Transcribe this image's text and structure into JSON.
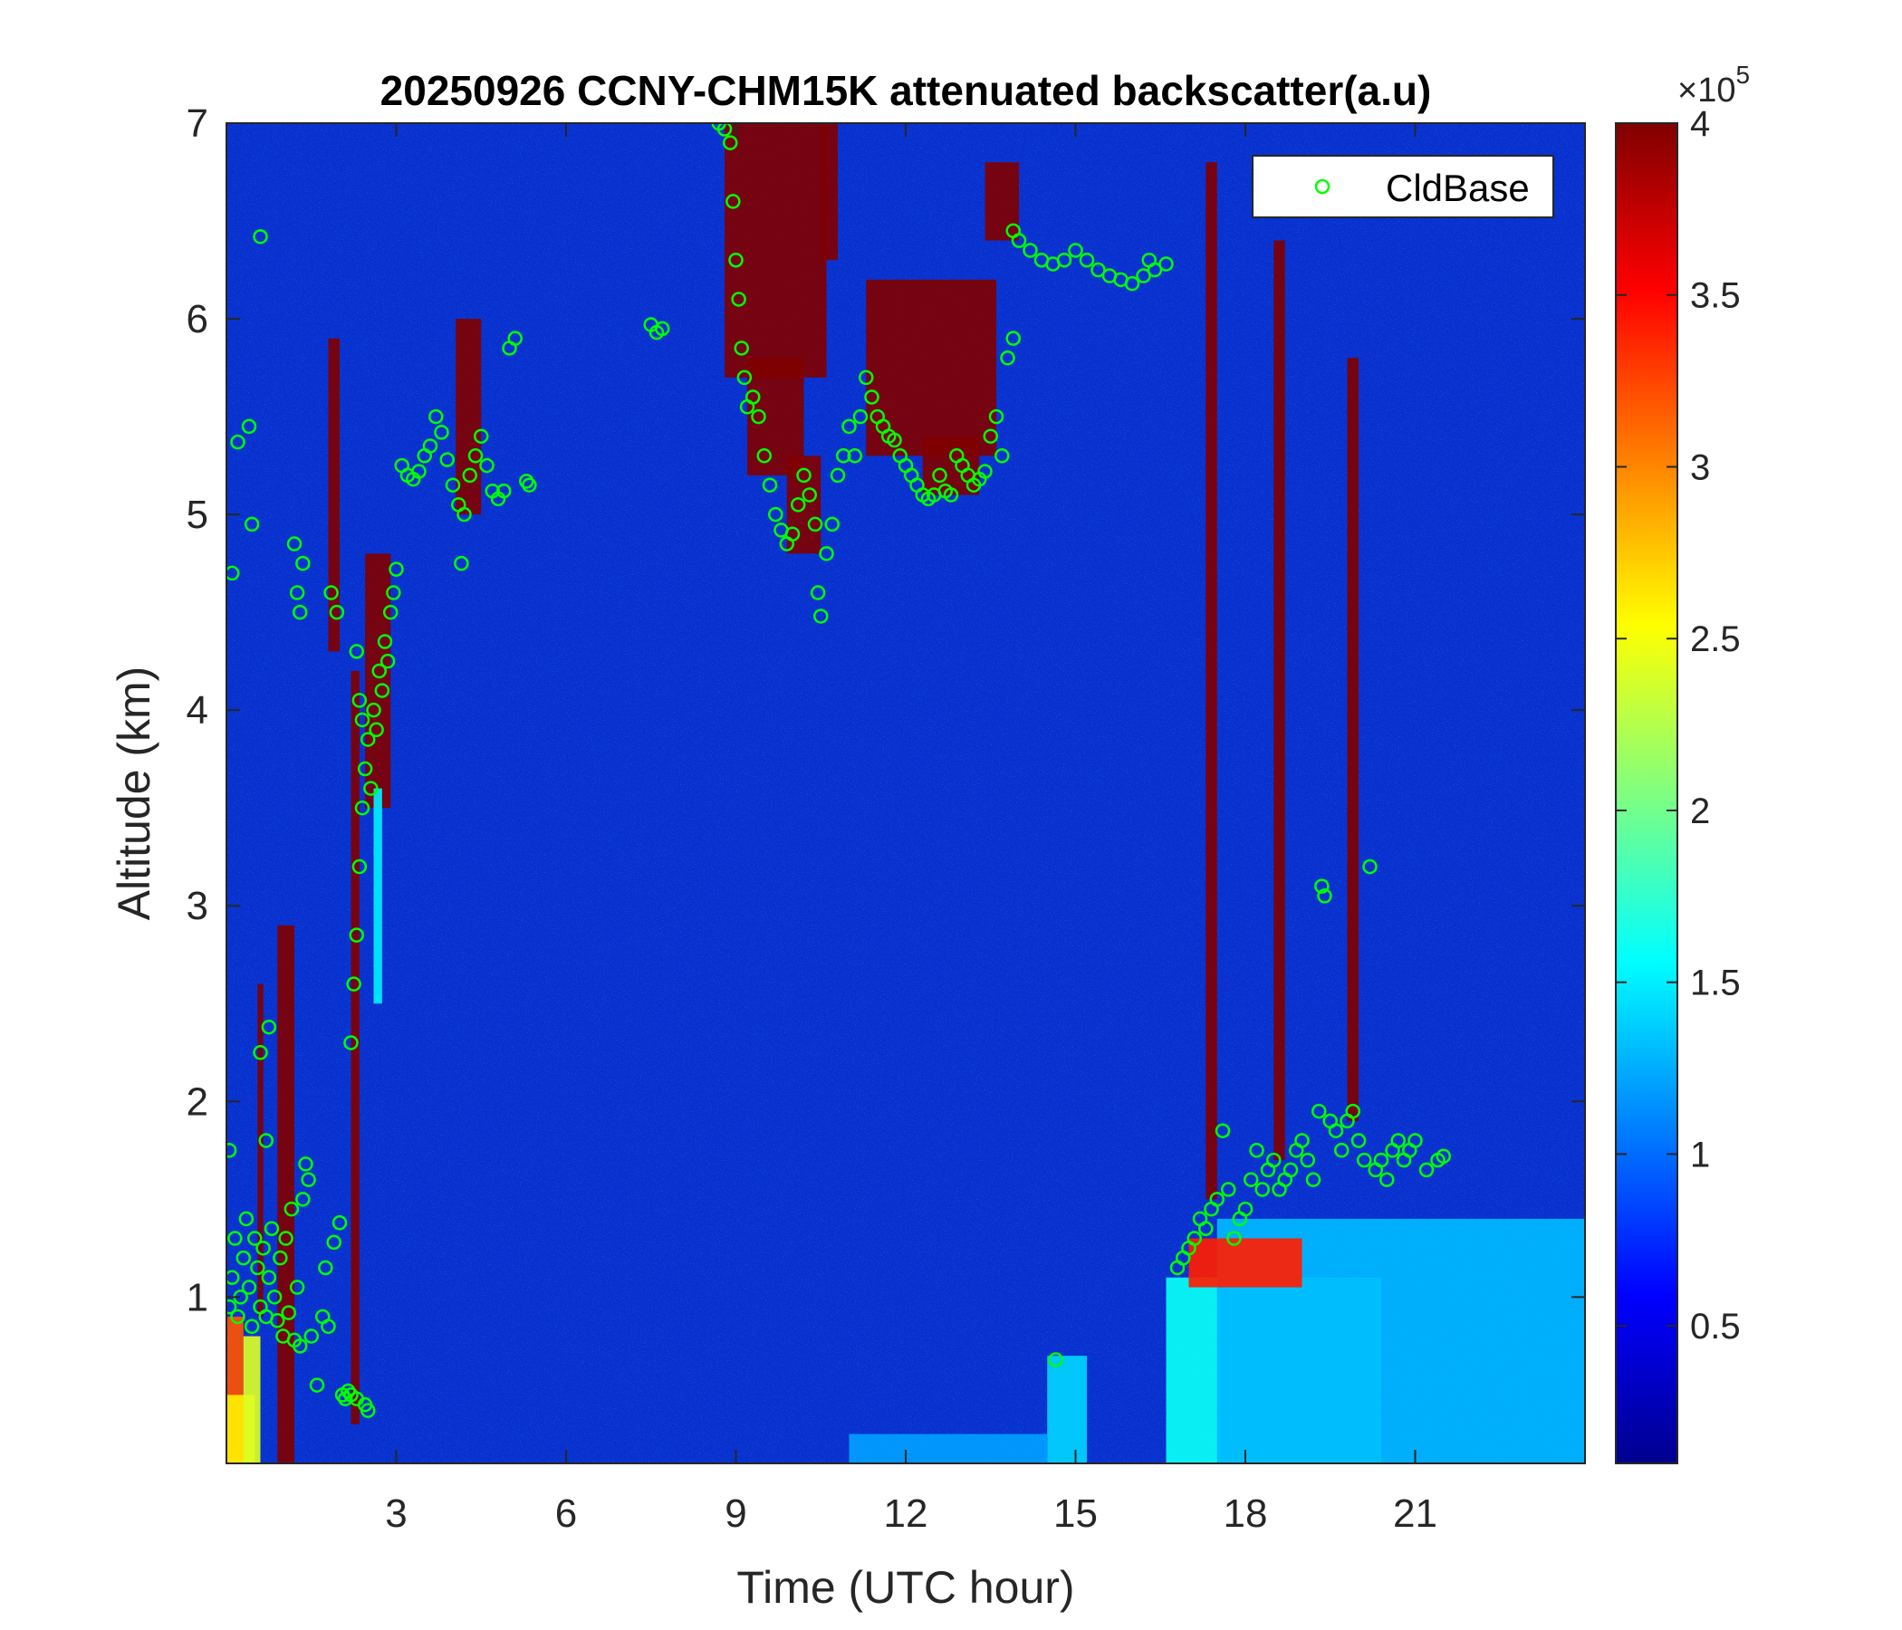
{
  "chart_data": {
    "type": "heatmap",
    "title": "20250926 CCNY-CHM15K attenuated backscatter(a.u)",
    "xlabel": "Time (UTC hour)",
    "ylabel": "Altitude (km)",
    "xlim": [
      0,
      24
    ],
    "ylim": [
      0.15,
      7
    ],
    "xticks": [
      3,
      6,
      9,
      12,
      15,
      18,
      21
    ],
    "yticks": [
      1,
      2,
      3,
      4,
      5,
      6,
      7
    ],
    "grid": false,
    "colormap": "jet",
    "colorbar": {
      "range": [
        0.1,
        4
      ],
      "ticks": [
        0.5,
        1,
        1.5,
        2,
        2.5,
        3,
        3.5,
        4
      ],
      "tick_labels": [
        "0.5",
        "1",
        "1.5",
        "2",
        "2.5",
        "3",
        "3.5",
        "4"
      ],
      "multiplier_base": "×10",
      "multiplier_exponent": "5"
    },
    "legend": {
      "position": "top-right",
      "entries": [
        "CldBase"
      ]
    },
    "series": [
      {
        "name": "CldBase",
        "marker": "circle",
        "color": "#00ff00",
        "points": [
          [
            0.05,
            0.95
          ],
          [
            0.1,
            1.1
          ],
          [
            0.15,
            1.3
          ],
          [
            0.2,
            0.9
          ],
          [
            0.25,
            1.0
          ],
          [
            0.3,
            1.2
          ],
          [
            0.35,
            1.4
          ],
          [
            0.4,
            1.05
          ],
          [
            0.45,
            0.85
          ],
          [
            0.5,
            1.3
          ],
          [
            0.55,
            1.15
          ],
          [
            0.6,
            0.95
          ],
          [
            0.65,
            1.25
          ],
          [
            0.7,
            0.9
          ],
          [
            0.75,
            1.1
          ],
          [
            0.8,
            1.35
          ],
          [
            0.85,
            1.0
          ],
          [
            0.9,
            0.88
          ],
          [
            0.95,
            1.2
          ],
          [
            1.0,
            0.8
          ],
          [
            1.05,
            1.3
          ],
          [
            1.1,
            0.92
          ],
          [
            1.15,
            1.45
          ],
          [
            1.2,
            0.78
          ],
          [
            1.25,
            1.05
          ],
          [
            1.3,
            0.75
          ],
          [
            1.35,
            1.5
          ],
          [
            0.05,
            1.75
          ],
          [
            0.1,
            4.7
          ],
          [
            0.2,
            5.37
          ],
          [
            0.4,
            5.45
          ],
          [
            0.45,
            4.95
          ],
          [
            0.6,
            6.42
          ],
          [
            0.6,
            2.25
          ],
          [
            0.7,
            1.8
          ],
          [
            0.75,
            2.38
          ],
          [
            1.2,
            4.85
          ],
          [
            1.25,
            4.6
          ],
          [
            1.3,
            4.5
          ],
          [
            1.35,
            4.75
          ],
          [
            1.4,
            1.68
          ],
          [
            1.45,
            1.6
          ],
          [
            1.5,
            0.8
          ],
          [
            1.6,
            0.55
          ],
          [
            1.7,
            0.9
          ],
          [
            1.75,
            1.15
          ],
          [
            1.8,
            0.85
          ],
          [
            1.85,
            4.6
          ],
          [
            1.9,
            1.28
          ],
          [
            1.95,
            4.5
          ],
          [
            2.0,
            1.38
          ],
          [
            2.05,
            0.5
          ],
          [
            2.1,
            0.48
          ],
          [
            2.15,
            0.52
          ],
          [
            2.2,
            2.3
          ],
          [
            2.25,
            2.6
          ],
          [
            2.3,
            2.85
          ],
          [
            2.35,
            3.2
          ],
          [
            2.4,
            3.5
          ],
          [
            2.45,
            3.7
          ],
          [
            2.5,
            3.85
          ],
          [
            2.55,
            3.6
          ],
          [
            2.6,
            4.0
          ],
          [
            2.65,
            3.9
          ],
          [
            2.7,
            4.2
          ],
          [
            2.75,
            4.1
          ],
          [
            2.8,
            4.35
          ],
          [
            2.85,
            4.25
          ],
          [
            2.9,
            4.5
          ],
          [
            2.95,
            4.6
          ],
          [
            2.3,
            4.3
          ],
          [
            2.35,
            4.05
          ],
          [
            2.4,
            3.95
          ],
          [
            2.45,
            0.45
          ],
          [
            2.5,
            0.42
          ],
          [
            2.2,
            0.5
          ],
          [
            2.3,
            0.48
          ],
          [
            3.0,
            4.72
          ],
          [
            3.1,
            5.25
          ],
          [
            3.2,
            5.2
          ],
          [
            3.3,
            5.18
          ],
          [
            3.4,
            5.22
          ],
          [
            3.5,
            5.3
          ],
          [
            3.6,
            5.35
          ],
          [
            3.7,
            5.5
          ],
          [
            3.8,
            5.42
          ],
          [
            3.9,
            5.28
          ],
          [
            4.0,
            5.15
          ],
          [
            4.1,
            5.05
          ],
          [
            4.15,
            4.75
          ],
          [
            4.2,
            5.0
          ],
          [
            4.3,
            5.2
          ],
          [
            4.4,
            5.3
          ],
          [
            4.5,
            5.4
          ],
          [
            4.6,
            5.25
          ],
          [
            4.7,
            5.12
          ],
          [
            4.8,
            5.08
          ],
          [
            4.9,
            5.12
          ],
          [
            5.0,
            5.85
          ],
          [
            5.1,
            5.9
          ],
          [
            5.3,
            5.17
          ],
          [
            5.35,
            5.15
          ],
          [
            7.5,
            5.97
          ],
          [
            7.6,
            5.93
          ],
          [
            7.7,
            5.95
          ],
          [
            8.7,
            7.0
          ],
          [
            8.8,
            6.97
          ],
          [
            8.9,
            6.9
          ],
          [
            8.95,
            6.6
          ],
          [
            9.0,
            6.3
          ],
          [
            9.05,
            6.1
          ],
          [
            9.1,
            5.85
          ],
          [
            9.15,
            5.7
          ],
          [
            9.2,
            5.55
          ],
          [
            9.3,
            5.6
          ],
          [
            9.4,
            5.5
          ],
          [
            9.5,
            5.3
          ],
          [
            9.6,
            5.15
          ],
          [
            9.7,
            5.0
          ],
          [
            9.8,
            4.92
          ],
          [
            9.9,
            4.85
          ],
          [
            10.0,
            4.9
          ],
          [
            10.1,
            5.05
          ],
          [
            10.2,
            5.2
          ],
          [
            10.3,
            5.1
          ],
          [
            10.4,
            4.95
          ],
          [
            10.45,
            4.6
          ],
          [
            10.5,
            4.48
          ],
          [
            10.6,
            4.8
          ],
          [
            10.7,
            4.95
          ],
          [
            10.8,
            5.2
          ],
          [
            10.9,
            5.3
          ],
          [
            11.0,
            5.45
          ],
          [
            11.1,
            5.3
          ],
          [
            11.2,
            5.5
          ],
          [
            11.3,
            5.7
          ],
          [
            11.4,
            5.6
          ],
          [
            11.5,
            5.5
          ],
          [
            11.6,
            5.45
          ],
          [
            11.7,
            5.4
          ],
          [
            11.8,
            5.38
          ],
          [
            11.9,
            5.3
          ],
          [
            12.0,
            5.25
          ],
          [
            12.1,
            5.2
          ],
          [
            12.2,
            5.15
          ],
          [
            12.3,
            5.1
          ],
          [
            12.4,
            5.08
          ],
          [
            12.5,
            5.1
          ],
          [
            12.6,
            5.2
          ],
          [
            12.7,
            5.12
          ],
          [
            12.8,
            5.1
          ],
          [
            12.9,
            5.3
          ],
          [
            13.0,
            5.25
          ],
          [
            13.1,
            5.2
          ],
          [
            13.2,
            5.15
          ],
          [
            13.3,
            5.18
          ],
          [
            13.4,
            5.22
          ],
          [
            13.5,
            5.4
          ],
          [
            13.6,
            5.5
          ],
          [
            13.7,
            5.3
          ],
          [
            13.8,
            5.8
          ],
          [
            13.9,
            5.9
          ],
          [
            13.9,
            6.45
          ],
          [
            14.0,
            6.4
          ],
          [
            14.2,
            6.35
          ],
          [
            14.4,
            6.3
          ],
          [
            14.6,
            6.28
          ],
          [
            14.8,
            6.3
          ],
          [
            15.0,
            6.35
          ],
          [
            15.2,
            6.3
          ],
          [
            15.4,
            6.25
          ],
          [
            15.6,
            6.22
          ],
          [
            15.8,
            6.2
          ],
          [
            16.0,
            6.18
          ],
          [
            16.2,
            6.22
          ],
          [
            16.3,
            6.3
          ],
          [
            16.4,
            6.25
          ],
          [
            16.6,
            6.28
          ],
          [
            14.65,
            0.68
          ],
          [
            16.8,
            1.15
          ],
          [
            16.9,
            1.2
          ],
          [
            17.0,
            1.25
          ],
          [
            17.1,
            1.3
          ],
          [
            17.2,
            1.4
          ],
          [
            17.3,
            1.35
          ],
          [
            17.4,
            1.45
          ],
          [
            17.5,
            1.5
          ],
          [
            17.6,
            1.85
          ],
          [
            17.7,
            1.55
          ],
          [
            17.8,
            1.3
          ],
          [
            17.9,
            1.4
          ],
          [
            18.0,
            1.45
          ],
          [
            18.1,
            1.6
          ],
          [
            18.2,
            1.75
          ],
          [
            18.3,
            1.55
          ],
          [
            18.4,
            1.65
          ],
          [
            18.5,
            1.7
          ],
          [
            18.6,
            1.55
          ],
          [
            18.7,
            1.6
          ],
          [
            18.8,
            1.65
          ],
          [
            18.9,
            1.75
          ],
          [
            19.0,
            1.8
          ],
          [
            19.1,
            1.7
          ],
          [
            19.2,
            1.6
          ],
          [
            19.3,
            1.95
          ],
          [
            19.35,
            3.1
          ],
          [
            19.4,
            3.05
          ],
          [
            19.5,
            1.9
          ],
          [
            19.6,
            1.85
          ],
          [
            19.7,
            1.75
          ],
          [
            19.8,
            1.9
          ],
          [
            19.9,
            1.95
          ],
          [
            20.0,
            1.8
          ],
          [
            20.1,
            1.7
          ],
          [
            20.2,
            3.2
          ],
          [
            20.3,
            1.65
          ],
          [
            20.4,
            1.7
          ],
          [
            20.5,
            1.6
          ],
          [
            20.6,
            1.75
          ],
          [
            20.7,
            1.8
          ],
          [
            20.8,
            1.7
          ],
          [
            20.9,
            1.75
          ],
          [
            21.0,
            1.8
          ],
          [
            21.2,
            1.65
          ],
          [
            21.4,
            1.7
          ],
          [
            21.5,
            1.72
          ]
        ]
      }
    ],
    "regions": [
      {
        "t0": 0.0,
        "t1": 0.3,
        "z0": 0.15,
        "z1": 0.9,
        "v": 3.2
      },
      {
        "t0": 0.0,
        "t1": 0.5,
        "z0": 0.15,
        "z1": 0.5,
        "v": 2.6
      },
      {
        "t0": 0.3,
        "t1": 0.6,
        "z0": 0.15,
        "z1": 0.8,
        "v": 2.4
      },
      {
        "t0": 0.9,
        "t1": 1.2,
        "z0": 0.15,
        "z1": 2.9,
        "v": 4.0
      },
      {
        "t0": 0.55,
        "t1": 0.65,
        "z0": 0.9,
        "z1": 2.6,
        "v": 4.0
      },
      {
        "t0": 1.8,
        "t1": 2.0,
        "z0": 4.3,
        "z1": 5.9,
        "v": 4.0
      },
      {
        "t0": 2.2,
        "t1": 2.35,
        "z0": 0.35,
        "z1": 4.2,
        "v": 4.0
      },
      {
        "t0": 2.45,
        "t1": 2.9,
        "z0": 3.5,
        "z1": 4.8,
        "v": 4.0
      },
      {
        "t0": 2.6,
        "t1": 2.75,
        "z0": 2.5,
        "z1": 3.6,
        "v": 1.5
      },
      {
        "t0": 4.05,
        "t1": 4.5,
        "z0": 5.0,
        "z1": 6.0,
        "v": 4.0
      },
      {
        "t0": 8.8,
        "t1": 10.6,
        "z0": 5.7,
        "z1": 7.0,
        "v": 4.0
      },
      {
        "t0": 9.2,
        "t1": 10.2,
        "z0": 5.2,
        "z1": 5.8,
        "v": 4.0
      },
      {
        "t0": 9.9,
        "t1": 10.5,
        "z0": 4.8,
        "z1": 5.3,
        "v": 4.0
      },
      {
        "t0": 10.5,
        "t1": 10.8,
        "z0": 6.3,
        "z1": 7.0,
        "v": 4.0
      },
      {
        "t0": 11.3,
        "t1": 13.6,
        "z0": 5.3,
        "z1": 6.2,
        "v": 4.0
      },
      {
        "t0": 12.3,
        "t1": 13.3,
        "z0": 5.1,
        "z1": 5.4,
        "v": 4.0
      },
      {
        "t0": 13.4,
        "t1": 14.0,
        "z0": 6.4,
        "z1": 6.8,
        "v": 4.0
      },
      {
        "t0": 16.6,
        "t1": 20.4,
        "z0": 0.15,
        "z1": 1.1,
        "v": 1.6
      },
      {
        "t0": 17.5,
        "t1": 24.0,
        "z0": 0.15,
        "z1": 1.4,
        "v": 1.3
      },
      {
        "t0": 17.0,
        "t1": 19.0,
        "z0": 1.05,
        "z1": 1.3,
        "v": 3.4
      },
      {
        "t0": 17.3,
        "t1": 17.5,
        "z0": 1.5,
        "z1": 6.8,
        "v": 4.0
      },
      {
        "t0": 18.5,
        "t1": 18.7,
        "z0": 1.7,
        "z1": 6.4,
        "v": 4.0
      },
      {
        "t0": 19.8,
        "t1": 20.0,
        "z0": 1.9,
        "z1": 5.8,
        "v": 4.0
      },
      {
        "t0": 14.5,
        "t1": 15.2,
        "z0": 0.15,
        "z1": 0.7,
        "v": 1.4
      },
      {
        "t0": 11.0,
        "t1": 14.5,
        "z0": 0.15,
        "z1": 0.3,
        "v": 1.2
      }
    ]
  }
}
